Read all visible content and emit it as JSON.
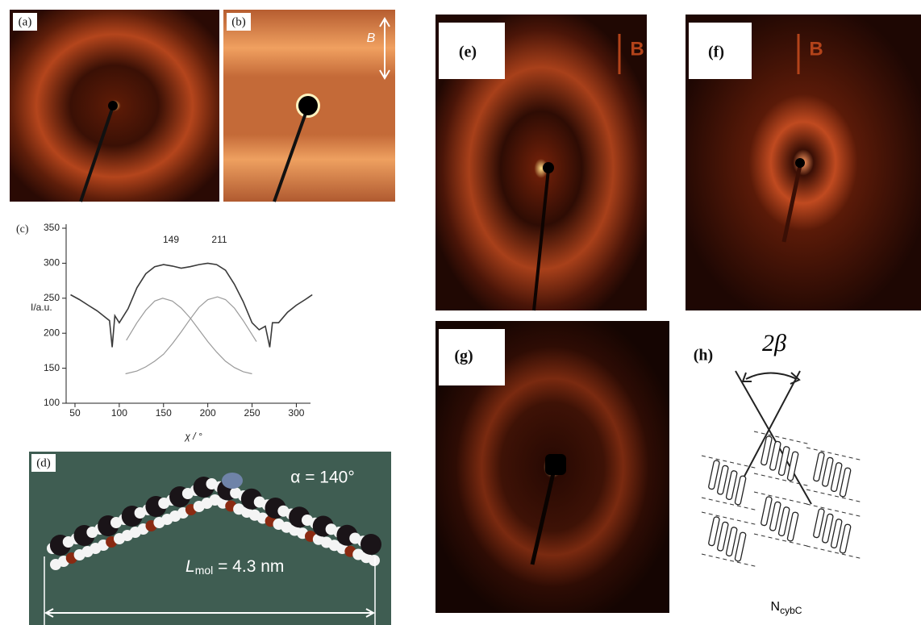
{
  "panels": {
    "a": {
      "label": "(a)"
    },
    "b": {
      "label": "(b)",
      "field": "B"
    },
    "d": {
      "label": "(d)",
      "angle": "α = 140°",
      "length_symbol": "L",
      "length_subscript": "mol",
      "length_value": " = 4.3 nm"
    },
    "e": {
      "label": "(e)",
      "field": "B"
    },
    "f": {
      "label": "(f)",
      "field": "B"
    },
    "g": {
      "label": "(g)"
    },
    "h": {
      "label": "(h)",
      "angle": "2β",
      "phase_symbol": "N",
      "phase_subscript": "cybC"
    }
  },
  "chart_data": {
    "type": "line",
    "label": "(c)",
    "y_label": "I/a.u.",
    "x_label": "χ / °",
    "annotations": [
      "149",
      "211"
    ],
    "xlim": [
      40,
      316
    ],
    "ylim": [
      100,
      350
    ],
    "xticks": [
      50,
      100,
      150,
      200,
      250,
      300
    ],
    "yticks": [
      100,
      150,
      200,
      250,
      300,
      350
    ],
    "series": [
      {
        "color": "#3a3a3a",
        "x": [
          45,
          55,
          65,
          75,
          85,
          89,
          92,
          95,
          100,
          110,
          120,
          130,
          140,
          150,
          160,
          170,
          180,
          190,
          200,
          210,
          220,
          230,
          240,
          250,
          258,
          265,
          270,
          273,
          280,
          290,
          300,
          310,
          318
        ],
        "values": [
          255,
          248,
          240,
          232,
          222,
          218,
          180,
          225,
          215,
          235,
          265,
          285,
          295,
          298,
          296,
          293,
          295,
          298,
          300,
          298,
          290,
          270,
          245,
          215,
          205,
          210,
          180,
          215,
          215,
          230,
          240,
          248,
          255
        ]
      },
      {
        "color": "#9a9a9a",
        "x": [
          108,
          120,
          130,
          140,
          149,
          160,
          170,
          180,
          190,
          200,
          210,
          220,
          230,
          240,
          250
        ],
        "values": [
          190,
          215,
          233,
          246,
          250,
          246,
          236,
          222,
          205,
          188,
          173,
          160,
          151,
          145,
          142
        ]
      },
      {
        "color": "#9a9a9a",
        "x": [
          107,
          120,
          130,
          140,
          150,
          160,
          170,
          180,
          190,
          200,
          211,
          220,
          230,
          240,
          255
        ],
        "values": [
          142,
          146,
          152,
          160,
          170,
          185,
          202,
          220,
          237,
          248,
          252,
          248,
          236,
          218,
          188
        ]
      }
    ]
  }
}
